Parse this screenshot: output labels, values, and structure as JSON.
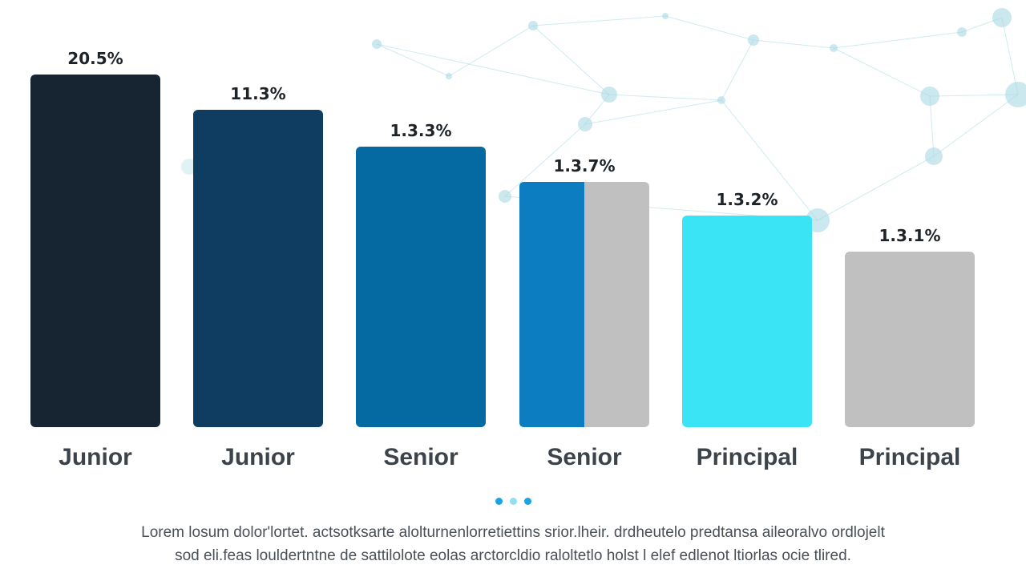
{
  "colors": {
    "bar_fills": [
      "#172533",
      "#0e3d61",
      "#066aa2",
      "#0b7dc0",
      "#3be4f4",
      "#c0c0c0"
    ],
    "split_secondary": "#c0c0c0",
    "network": "#a9d9e4",
    "pager_dots": [
      "#1aa3e6",
      "#8fe1ef",
      "#1aa3e6"
    ]
  },
  "chart_data": {
    "type": "bar",
    "categories": [
      "Junior",
      "Junior",
      "Senior",
      "Senior",
      "Principal",
      "Principal"
    ],
    "values": [
      20.5,
      11.3,
      1.3,
      1.3,
      1.3,
      1.3
    ],
    "value_labels": [
      "20.5%",
      "11.3%",
      "1.3.3%",
      "1.3.7%",
      "1.3.2%",
      "1.3.1%"
    ],
    "split_bar_index": 3,
    "grid": false,
    "legend": "none"
  },
  "caption": {
    "line1": "Lorem  losum dolor'lortet.  actsotksarte  alolturnenlorretiettins  srior.lheir. drdheutelo  predtansa  aileoralvo ordlojelt",
    "line2": "sod eli.feas louldertntne de  sattilolote  eolas  arctorcldio  raloltetlo holst l elef edlenot ltiorlas  ocie tlired."
  }
}
